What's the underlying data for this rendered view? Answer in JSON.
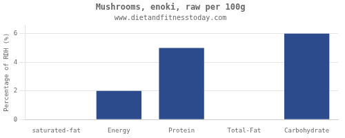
{
  "chart_data": {
    "type": "bar",
    "title": "Mushrooms, enoki, raw per 100g",
    "subtitle": "www.dietandfitnesstoday.com",
    "ylabel": "Percentage of RDH (%)",
    "categories": [
      "saturated-fat",
      "Energy",
      "Protein",
      "Total-Fat",
      "Carbohydrate"
    ],
    "values": [
      0,
      2,
      5,
      0,
      6
    ],
    "color": "#2b4b8c",
    "ylim": [
      0,
      6.6
    ],
    "yticks": [
      0,
      2,
      4,
      6
    ],
    "grid": true
  }
}
